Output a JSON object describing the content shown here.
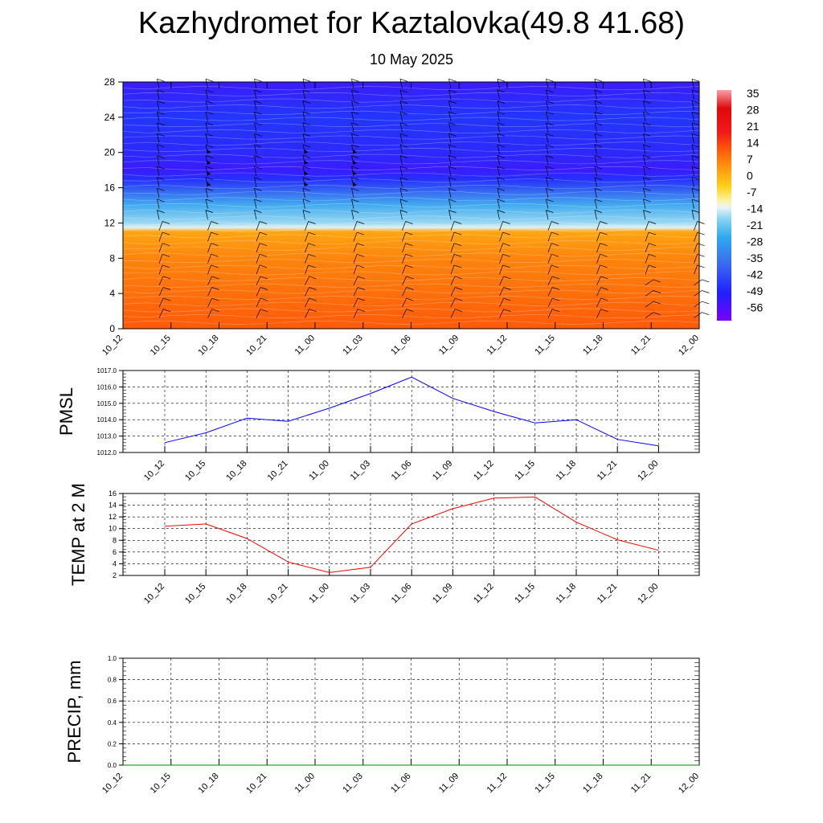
{
  "title": "Kazhydromet for Kaztalovka(49.8 41.68)",
  "subtitle": "10 May 2025",
  "colors": {
    "pmsl_line": "#0000ff",
    "temp_line": "#ff0000",
    "precip_line": "#008000",
    "grid": "#000000"
  },
  "chart_data": [
    {
      "type": "heatmap",
      "title": "",
      "xlabel": "",
      "ylabel": "",
      "x_ticks": [
        "10_12",
        "10_15",
        "10_18",
        "10_21",
        "11_00",
        "11_03",
        "11_06",
        "11_09",
        "11_12",
        "11_15",
        "11_18",
        "11_21",
        "12_00"
      ],
      "y_ticks": [
        0,
        4,
        8,
        12,
        16,
        20,
        24,
        28
      ],
      "ylim": [
        0,
        28
      ],
      "colorbar_labels": [
        35,
        28,
        21,
        14,
        7,
        0,
        -7,
        -14,
        -21,
        -28,
        -35,
        -42,
        -49,
        -56
      ],
      "colorbar_range": [
        -63,
        42
      ],
      "temperature_profile": [
        {
          "level": 0,
          "value": 18
        },
        {
          "level": 4,
          "value": 14
        },
        {
          "level": 8,
          "value": 10
        },
        {
          "level": 11,
          "value": 5
        },
        {
          "level": 11.5,
          "value": -14
        },
        {
          "level": 12,
          "value": -18
        },
        {
          "level": 14,
          "value": -26
        },
        {
          "level": 16,
          "value": -40
        },
        {
          "level": 17,
          "value": -50
        },
        {
          "level": 18,
          "value": -56
        },
        {
          "level": 20,
          "value": -52
        },
        {
          "level": 24,
          "value": -48
        },
        {
          "level": 28,
          "value": -56
        }
      ],
      "wind_barbs": "present"
    },
    {
      "type": "line",
      "title": "",
      "ylabel": "PMSL",
      "categories": [
        "10_12",
        "10_15",
        "10_18",
        "10_21",
        "11_00",
        "11_03",
        "11_06",
        "11_09",
        "11_12",
        "11_15",
        "11_18",
        "11_21",
        "12_00"
      ],
      "series": [
        {
          "values": [
            1012.6,
            1013.2,
            1014.1,
            1013.9,
            1014.7,
            1015.6,
            1016.6,
            1015.3,
            1014.5,
            1013.8,
            1014.0,
            1012.8,
            1012.4
          ]
        }
      ],
      "y_ticks": [
        "1012.0",
        "1013.0",
        "1014.0",
        "1015.0",
        "1016.0",
        "1017.0"
      ],
      "ylim": [
        1012,
        1017
      ],
      "grid": true
    },
    {
      "type": "line",
      "title": "",
      "ylabel": "TEMP at 2 M",
      "categories": [
        "10_12",
        "10_15",
        "10_18",
        "10_21",
        "11_00",
        "11_03",
        "11_06",
        "11_09",
        "11_12",
        "11_15",
        "11_18",
        "11_21",
        "12_00"
      ],
      "series": [
        {
          "values": [
            10.4,
            10.8,
            8.3,
            4.3,
            2.5,
            3.4,
            10.8,
            13.4,
            15.2,
            15.4,
            11.1,
            8.1,
            6.3
          ]
        }
      ],
      "y_ticks": [
        "2",
        "4",
        "6",
        "8",
        "10",
        "12",
        "14",
        "16"
      ],
      "ylim": [
        2,
        16
      ],
      "grid": true
    },
    {
      "type": "line",
      "title": "",
      "ylabel": "PRECIP, mm",
      "categories": [
        "10_12",
        "10_15",
        "10_18",
        "10_21",
        "11_00",
        "11_03",
        "11_06",
        "11_09",
        "11_12",
        "11_15",
        "11_18",
        "11_21",
        "12_00"
      ],
      "series": [
        {
          "values": [
            0,
            0,
            0,
            0,
            0,
            0,
            0,
            0,
            0,
            0,
            0,
            0,
            0
          ]
        }
      ],
      "y_ticks": [
        "0.0",
        "0.2",
        "0.4",
        "0.6",
        "0.8",
        "1.0"
      ],
      "ylim": [
        0,
        1
      ],
      "grid": true
    }
  ]
}
